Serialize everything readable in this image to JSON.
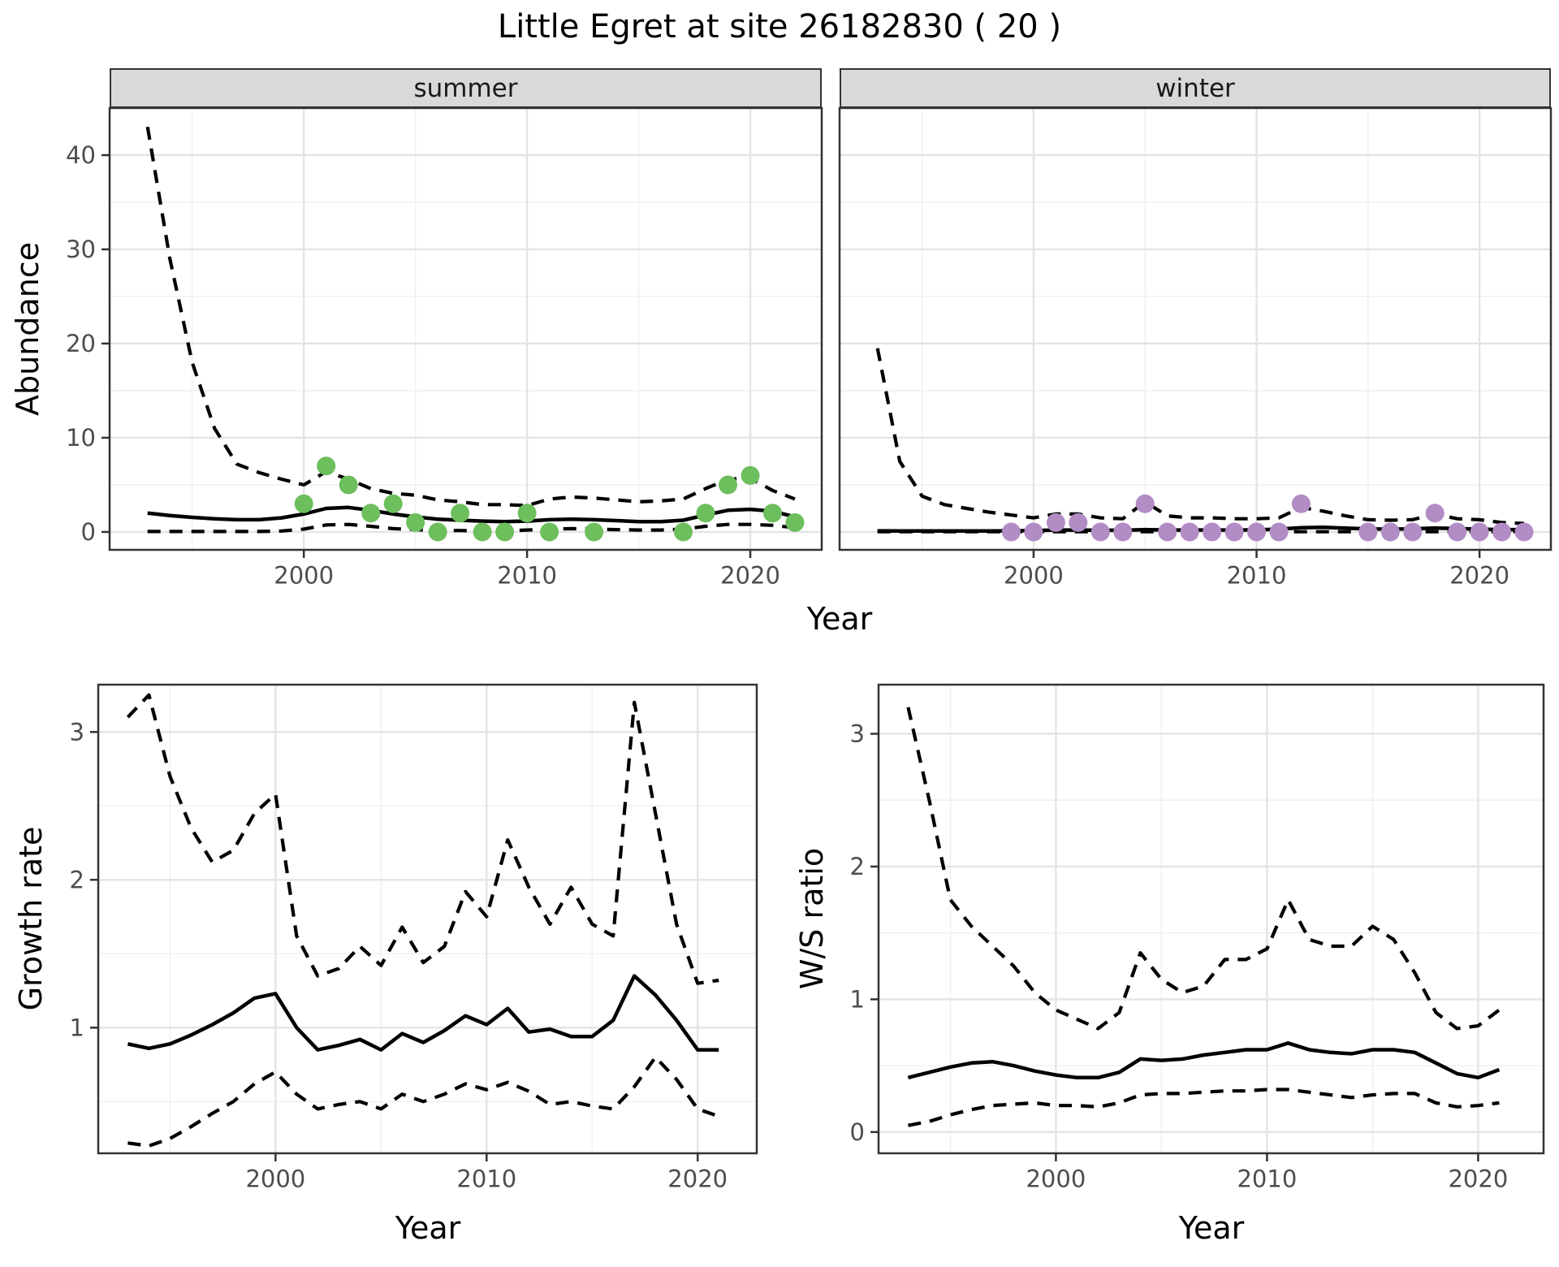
{
  "title": "Little Egret at site 26182830 ( 20 )",
  "colors": {
    "summer_point": "#6dbe5c",
    "winter_point": "#b28cc5",
    "line": "#000000",
    "strip_bg": "#d9d9d9",
    "panel_border": "#333333",
    "grid_major": "#e4e4e4",
    "grid_minor": "#f1f1f1",
    "tick_label": "#4d4d4d"
  },
  "labels": {
    "facet_summer": "summer",
    "facet_winter": "winter",
    "abundance_axis": "Abundance",
    "top_x_axis": "Year",
    "growth_axis": "Growth rate",
    "growth_x_axis": "Year",
    "ws_axis": "W/S ratio",
    "ws_x_axis": "Year"
  },
  "chart_data": [
    {
      "id": "abundance-summer",
      "type": "line",
      "facet": "summer",
      "xlabel": "Year",
      "ylabel": "Abundance",
      "xlim": [
        1991.3,
        2023.2
      ],
      "ylim": [
        -1.9,
        45.0
      ],
      "xticks": [
        2000,
        2010,
        2020
      ],
      "xtick_labels": [
        "2000",
        "2010",
        "2020"
      ],
      "yticks": [
        0,
        10,
        20,
        30,
        40
      ],
      "ytick_labels": [
        "0",
        "10",
        "20",
        "30",
        "40"
      ],
      "xminor": [
        1995,
        2005,
        2015
      ],
      "yminor": [
        5,
        15,
        25,
        35,
        45
      ],
      "years": [
        1993,
        1994,
        1995,
        1996,
        1997,
        1998,
        1999,
        2000,
        2001,
        2002,
        2003,
        2004,
        2005,
        2006,
        2007,
        2008,
        2009,
        2010,
        2011,
        2012,
        2013,
        2014,
        2015,
        2016,
        2017,
        2018,
        2019,
        2020,
        2021,
        2022
      ],
      "series": [
        {
          "name": "upper_ci",
          "style": "dashed",
          "values": [
            43,
            29,
            18,
            11,
            7.2,
            6.3,
            5.6,
            5.0,
            6.4,
            5.6,
            4.6,
            4.1,
            3.9,
            3.4,
            3.2,
            2.9,
            2.9,
            2.8,
            3.5,
            3.7,
            3.6,
            3.4,
            3.2,
            3.3,
            3.5,
            4.6,
            5.6,
            5.7,
            4.4,
            3.5
          ]
        },
        {
          "name": "fit",
          "style": "solid",
          "values": [
            2.0,
            1.75,
            1.55,
            1.4,
            1.3,
            1.3,
            1.5,
            1.9,
            2.5,
            2.6,
            2.3,
            1.9,
            1.6,
            1.35,
            1.25,
            1.15,
            1.1,
            1.15,
            1.3,
            1.35,
            1.3,
            1.2,
            1.1,
            1.1,
            1.25,
            1.8,
            2.3,
            2.4,
            2.2,
            1.6
          ]
        },
        {
          "name": "lower_ci",
          "style": "dashed",
          "values": [
            0.05,
            0.05,
            0.05,
            0.05,
            0.05,
            0.05,
            0.1,
            0.3,
            0.75,
            0.8,
            0.6,
            0.35,
            0.25,
            0.15,
            0.15,
            0.1,
            0.1,
            0.2,
            0.3,
            0.35,
            0.3,
            0.25,
            0.2,
            0.2,
            0.3,
            0.6,
            0.8,
            0.8,
            0.7,
            0.45
          ]
        }
      ],
      "points": {
        "name": "observed-counts-summer",
        "color_key": "summer_point",
        "years": [
          2000,
          2001,
          2002,
          2003,
          2004,
          2005,
          2006,
          2007,
          2008,
          2009,
          2010,
          2011,
          2013,
          2017,
          2018,
          2019,
          2020,
          2021,
          2022
        ],
        "values": [
          3,
          7,
          5,
          2,
          3,
          1,
          0,
          2,
          0,
          0,
          2,
          0,
          0,
          0,
          2,
          5,
          6,
          2,
          1
        ]
      }
    },
    {
      "id": "abundance-winter",
      "type": "line",
      "facet": "winter",
      "xlabel": "Year",
      "ylabel": "Abundance",
      "xlim": [
        1991.3,
        2023.2
      ],
      "ylim": [
        -1.9,
        45.0
      ],
      "xticks": [
        2000,
        2010,
        2020
      ],
      "xtick_labels": [
        "2000",
        "2010",
        "2020"
      ],
      "yticks": [],
      "ytick_labels": [],
      "xminor": [
        1995,
        2005,
        2015
      ],
      "yminor": [
        5,
        15,
        25,
        35,
        45
      ],
      "years": [
        1993,
        1994,
        1995,
        1996,
        1997,
        1998,
        1999,
        2000,
        2001,
        2002,
        2003,
        2004,
        2005,
        2006,
        2007,
        2008,
        2009,
        2010,
        2011,
        2012,
        2013,
        2014,
        2015,
        2016,
        2017,
        2018,
        2019,
        2020,
        2021,
        2022
      ],
      "series": [
        {
          "name": "upper_ci",
          "style": "dashed",
          "values": [
            19.5,
            7.5,
            3.8,
            2.9,
            2.5,
            2.1,
            1.8,
            1.5,
            1.9,
            1.9,
            1.5,
            1.4,
            3.2,
            1.7,
            1.5,
            1.5,
            1.4,
            1.4,
            1.5,
            2.6,
            2.2,
            1.7,
            1.3,
            1.25,
            1.3,
            1.9,
            1.4,
            1.3,
            1.0,
            0.9
          ]
        },
        {
          "name": "fit",
          "style": "solid",
          "values": [
            0.12,
            0.1,
            0.1,
            0.1,
            0.1,
            0.1,
            0.12,
            0.15,
            0.2,
            0.2,
            0.18,
            0.18,
            0.25,
            0.2,
            0.2,
            0.2,
            0.2,
            0.22,
            0.3,
            0.45,
            0.5,
            0.4,
            0.32,
            0.3,
            0.32,
            0.42,
            0.35,
            0.3,
            0.25,
            0.25
          ]
        },
        {
          "name": "lower_ci",
          "style": "dashed",
          "values": [
            0.02,
            0.02,
            0.02,
            0.02,
            0.02,
            0.02,
            0.02,
            0.02,
            0.02,
            0.02,
            0.02,
            0.02,
            0.02,
            0.02,
            0.02,
            0.02,
            0.02,
            0.02,
            0.02,
            0.02,
            0.02,
            0.02,
            0.02,
            0.02,
            0.02,
            0.02,
            0.02,
            0.02,
            0.02,
            0.02
          ]
        }
      ],
      "points": {
        "name": "observed-counts-winter",
        "color_key": "winter_point",
        "years": [
          1999,
          2000,
          2001,
          2002,
          2003,
          2004,
          2005,
          2006,
          2007,
          2008,
          2009,
          2010,
          2011,
          2012,
          2015,
          2016,
          2017,
          2018,
          2019,
          2020,
          2021,
          2022
        ],
        "values": [
          0,
          0,
          1,
          1,
          0,
          0,
          3,
          0,
          0,
          0,
          0,
          0,
          0,
          3,
          0,
          0,
          0,
          2,
          0,
          0,
          0,
          0
        ]
      }
    },
    {
      "id": "growth-rate",
      "type": "line",
      "facet": null,
      "xlabel": "Year",
      "ylabel": "Growth rate",
      "xlim": [
        1991.6,
        2022.8
      ],
      "ylim": [
        0.15,
        3.32
      ],
      "xticks": [
        2000,
        2010,
        2020
      ],
      "xtick_labels": [
        "2000",
        "2010",
        "2020"
      ],
      "yticks": [
        1,
        2,
        3
      ],
      "ytick_labels": [
        "1",
        "2",
        "3"
      ],
      "xminor": [
        1995,
        2005,
        2015
      ],
      "yminor": [
        0.5,
        1.5,
        2.5
      ],
      "years": [
        1993,
        1994,
        1995,
        1996,
        1997,
        1998,
        1999,
        2000,
        2001,
        2002,
        2003,
        2004,
        2005,
        2006,
        2007,
        2008,
        2009,
        2010,
        2011,
        2012,
        2013,
        2014,
        2015,
        2016,
        2017,
        2018,
        2019,
        2020,
        2021
      ],
      "series": [
        {
          "name": "upper_ci",
          "style": "dashed",
          "values": [
            3.1,
            3.25,
            2.7,
            2.35,
            2.12,
            2.2,
            2.45,
            2.58,
            1.62,
            1.35,
            1.4,
            1.55,
            1.42,
            1.68,
            1.44,
            1.55,
            1.92,
            1.75,
            2.27,
            1.95,
            1.7,
            1.95,
            1.7,
            1.62,
            3.2,
            2.45,
            1.7,
            1.3,
            1.32
          ]
        },
        {
          "name": "fit",
          "style": "solid",
          "values": [
            0.89,
            0.86,
            0.89,
            0.95,
            1.02,
            1.1,
            1.2,
            1.23,
            1.0,
            0.85,
            0.88,
            0.92,
            0.85,
            0.96,
            0.9,
            0.98,
            1.08,
            1.02,
            1.13,
            0.97,
            0.99,
            0.94,
            0.94,
            1.05,
            1.35,
            1.22,
            1.05,
            0.85,
            0.85
          ]
        },
        {
          "name": "lower_ci",
          "style": "dashed",
          "values": [
            0.22,
            0.2,
            0.25,
            0.33,
            0.42,
            0.5,
            0.62,
            0.7,
            0.55,
            0.45,
            0.48,
            0.5,
            0.45,
            0.55,
            0.5,
            0.55,
            0.62,
            0.58,
            0.63,
            0.57,
            0.48,
            0.5,
            0.47,
            0.45,
            0.6,
            0.8,
            0.65,
            0.45,
            0.4
          ]
        }
      ],
      "points": null
    },
    {
      "id": "ws-ratio",
      "type": "line",
      "facet": null,
      "xlabel": "Year",
      "ylabel": "W/S ratio",
      "xlim": [
        1991.6,
        2023.1
      ],
      "ylim": [
        -0.16,
        3.37
      ],
      "xticks": [
        2000,
        2010,
        2020
      ],
      "xtick_labels": [
        "2000",
        "2010",
        "2020"
      ],
      "yticks": [
        0,
        1,
        2,
        3
      ],
      "ytick_labels": [
        "0",
        "1",
        "2",
        "3"
      ],
      "xminor": [
        1995,
        2005,
        2015
      ],
      "yminor": [
        0.5,
        1.5,
        2.5
      ],
      "years": [
        1993,
        1994,
        1995,
        1996,
        1997,
        1998,
        1999,
        2000,
        2001,
        2002,
        2003,
        2004,
        2005,
        2006,
        2007,
        2008,
        2009,
        2010,
        2011,
        2012,
        2013,
        2014,
        2015,
        2016,
        2017,
        2018,
        2019,
        2020,
        2021
      ],
      "series": [
        {
          "name": "upper_ci",
          "style": "dashed",
          "values": [
            3.2,
            2.5,
            1.75,
            1.55,
            1.4,
            1.25,
            1.05,
            0.92,
            0.85,
            0.78,
            0.9,
            1.35,
            1.15,
            1.05,
            1.1,
            1.3,
            1.3,
            1.38,
            1.75,
            1.45,
            1.4,
            1.4,
            1.55,
            1.45,
            1.2,
            0.9,
            0.78,
            0.8,
            0.92
          ]
        },
        {
          "name": "fit",
          "style": "solid",
          "values": [
            0.41,
            0.45,
            0.49,
            0.52,
            0.53,
            0.5,
            0.46,
            0.43,
            0.41,
            0.41,
            0.45,
            0.55,
            0.54,
            0.55,
            0.58,
            0.6,
            0.62,
            0.62,
            0.67,
            0.62,
            0.6,
            0.59,
            0.62,
            0.62,
            0.6,
            0.52,
            0.44,
            0.41,
            0.47
          ]
        },
        {
          "name": "lower_ci",
          "style": "dashed",
          "values": [
            0.05,
            0.08,
            0.13,
            0.17,
            0.2,
            0.21,
            0.22,
            0.2,
            0.2,
            0.19,
            0.22,
            0.28,
            0.29,
            0.29,
            0.3,
            0.31,
            0.31,
            0.32,
            0.32,
            0.3,
            0.28,
            0.26,
            0.28,
            0.29,
            0.29,
            0.22,
            0.19,
            0.2,
            0.22
          ]
        }
      ],
      "points": null
    }
  ]
}
